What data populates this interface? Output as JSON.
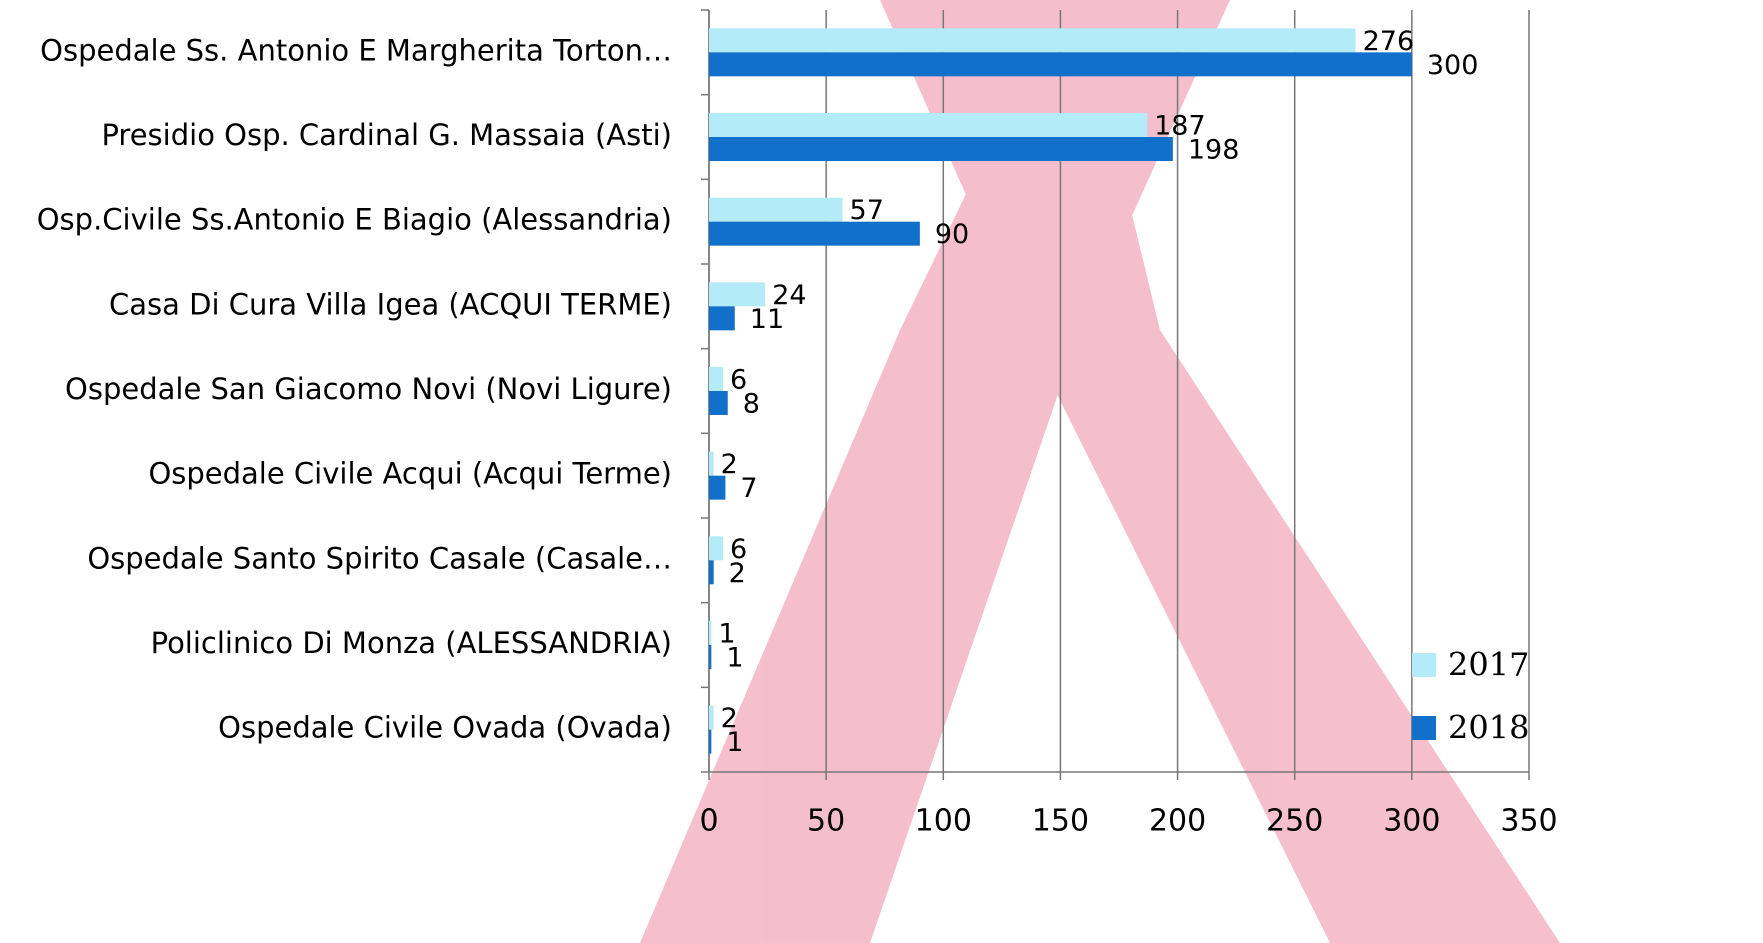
{
  "chart_data": {
    "type": "bar",
    "orientation": "horizontal",
    "categories": [
      "Ospedale Ss. Antonio E Margherita Torton…",
      "Presidio Osp. Cardinal G. Massaia (Asti)",
      "Osp.Civile Ss.Antonio E Biagio (Alessandria)",
      "Casa Di Cura Villa Igea (ACQUI TERME)",
      "Ospedale San Giacomo Novi (Novi Ligure)",
      "Ospedale Civile Acqui (Acqui Terme)",
      "Ospedale Santo Spirito Casale (Casale…",
      "Policlinico Di Monza (ALESSANDRIA)",
      "Ospedale Civile Ovada (Ovada)"
    ],
    "series": [
      {
        "name": "2017",
        "color": "#b4ebf8",
        "values": [
          276,
          187,
          57,
          24,
          6,
          2,
          6,
          1,
          2
        ]
      },
      {
        "name": "2018",
        "color": "#1170c9",
        "values": [
          300,
          198,
          90,
          11,
          8,
          7,
          2,
          1,
          1
        ]
      }
    ],
    "xlim": [
      0,
      350
    ],
    "xticks": [
      0,
      50,
      100,
      150,
      200,
      250,
      300,
      350
    ],
    "grid": true,
    "legend": "bottom-right"
  }
}
